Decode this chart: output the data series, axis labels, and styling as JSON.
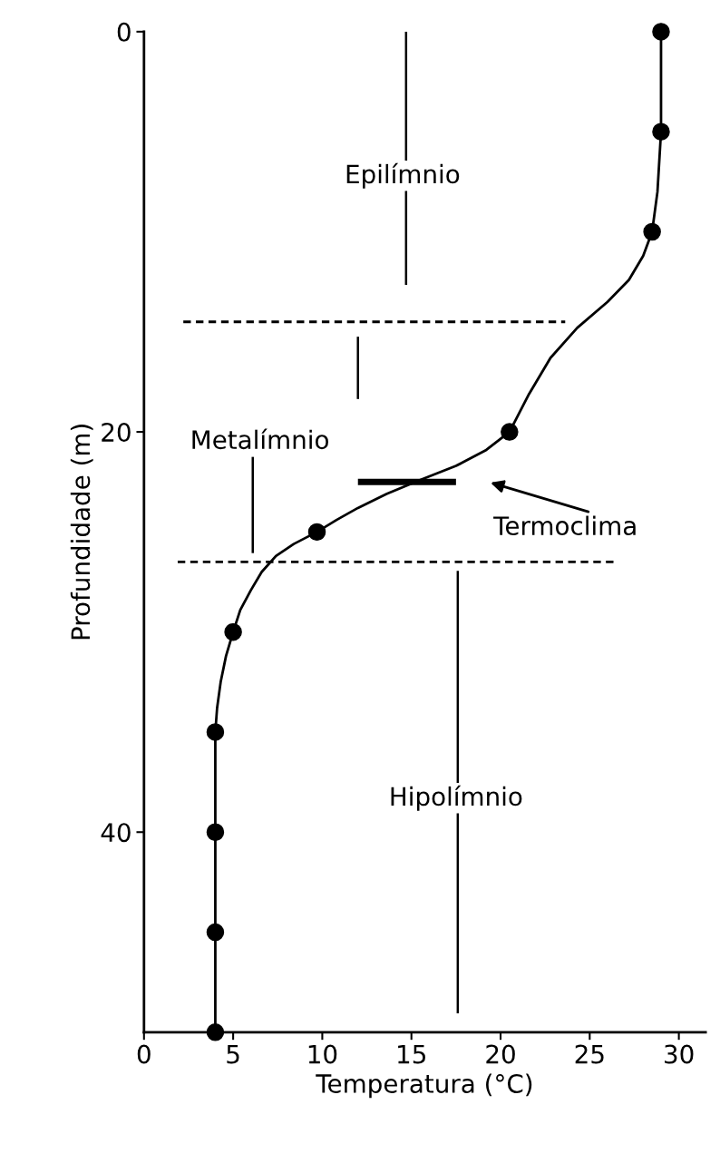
{
  "chart_data": {
    "type": "line",
    "xlabel": "Temperatura (°C)",
    "ylabel": "Profundidade (m)",
    "series": [
      {
        "type": "line",
        "color": "#000000",
        "line_style": "solid",
        "x": [
          29,
          29,
          28.8,
          28.5,
          28,
          27.2,
          26,
          24.3,
          22.8,
          21.6,
          20.5,
          19.2,
          17.5,
          15.5,
          13.6,
          12,
          10.8,
          9.7,
          8.4,
          7.4,
          6.6,
          6,
          5.4,
          5,
          4.6,
          4.3,
          4.1,
          4,
          4
        ],
        "values": [
          0,
          5,
          8,
          10,
          11.2,
          12.4,
          13.5,
          14.8,
          16.3,
          18.1,
          20,
          20.9,
          21.7,
          22.4,
          23.1,
          23.8,
          24.4,
          25,
          25.6,
          26.2,
          27,
          27.9,
          28.9,
          30,
          31.2,
          32.5,
          33.8,
          35,
          50
        ]
      },
      {
        "type": "scatter",
        "color": "#000000",
        "marker": "circle",
        "x": [
          29,
          29,
          28.5,
          20.5,
          9.7,
          5,
          4,
          4,
          4,
          4
        ],
        "values": [
          0,
          5,
          10,
          20,
          25,
          30,
          35,
          40,
          45,
          50
        ]
      }
    ],
    "xlim": [
      0,
      31.5
    ],
    "ylim": [
      50,
      0
    ],
    "xticks": [
      0,
      5,
      10,
      15,
      20,
      25,
      30
    ],
    "yticks": [
      0,
      20,
      40
    ],
    "ref_lines": [
      {
        "axis": "y",
        "value": 14.5,
        "line_style": "dashed"
      },
      {
        "axis": "y",
        "value": 26.5,
        "line_style": "dashed"
      },
      {
        "axis": "y",
        "value": 22.5,
        "line_style": "solid"
      }
    ],
    "annotations": [
      "Epilímnio",
      "Metalímnio",
      "Hipolímnio",
      {
        "text": "Termoclima",
        "x": 17.5,
        "y": 22.5
      }
    ],
    "grid": false,
    "legend": false
  }
}
